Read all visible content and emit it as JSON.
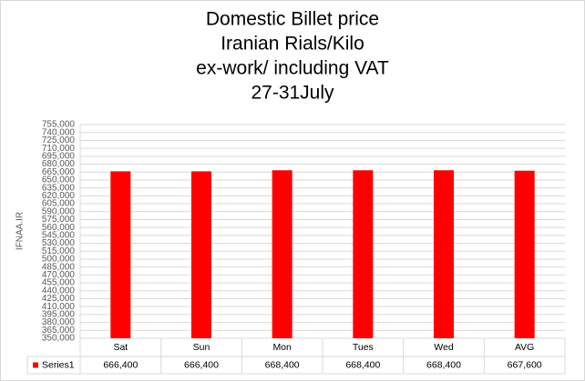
{
  "chart_data": {
    "type": "bar",
    "title": [
      "Domestic Billet price",
      "Iranian Rials/Kilo",
      "ex-work/ including VAT",
      "27-31July"
    ],
    "y_label": "IFNAA.IR",
    "categories": [
      "Sat",
      "Sun",
      "Mon",
      "Tues",
      "Wed",
      "AVG"
    ],
    "series": [
      {
        "name": "Series1",
        "color": "#ff0000",
        "values": [
          666400,
          666400,
          668400,
          668400,
          668400,
          667600
        ],
        "value_labels": [
          "666,400",
          "666,400",
          "668,400",
          "668,400",
          "668,400",
          "667,600"
        ]
      }
    ],
    "ylim": [
      350000,
      755000
    ],
    "yticks": [
      {
        "value": 350000,
        "label": "350,000"
      },
      {
        "value": 365000,
        "label": "365,000"
      },
      {
        "value": 380000,
        "label": "380,000"
      },
      {
        "value": 395000,
        "label": "395,000"
      },
      {
        "value": 410000,
        "label": "410,000"
      },
      {
        "value": 425000,
        "label": "425,000"
      },
      {
        "value": 440000,
        "label": "440,000"
      },
      {
        "value": 455000,
        "label": "455,000"
      },
      {
        "value": 470000,
        "label": "470,000"
      },
      {
        "value": 485000,
        "label": "485,000"
      },
      {
        "value": 500000,
        "label": "500,000"
      },
      {
        "value": 515000,
        "label": "515,000"
      },
      {
        "value": 530000,
        "label": "530,000"
      },
      {
        "value": 545000,
        "label": "545,000"
      },
      {
        "value": 560000,
        "label": "560,000"
      },
      {
        "value": 575000,
        "label": "575,000"
      },
      {
        "value": 590000,
        "label": "590,000"
      },
      {
        "value": 605000,
        "label": "605,000"
      },
      {
        "value": 620000,
        "label": "620,000"
      },
      {
        "value": 635000,
        "label": "635,000"
      },
      {
        "value": 650000,
        "label": "650,000"
      },
      {
        "value": 665000,
        "label": "665,000"
      },
      {
        "value": 680000,
        "label": "680,000"
      },
      {
        "value": 695000,
        "label": "695,000"
      },
      {
        "value": 710000,
        "label": "710,000"
      },
      {
        "value": 725000,
        "label": "725,000"
      },
      {
        "value": 740000,
        "label": "740,000"
      },
      {
        "value": 755000,
        "label": "755,000"
      }
    ],
    "grid": true
  }
}
